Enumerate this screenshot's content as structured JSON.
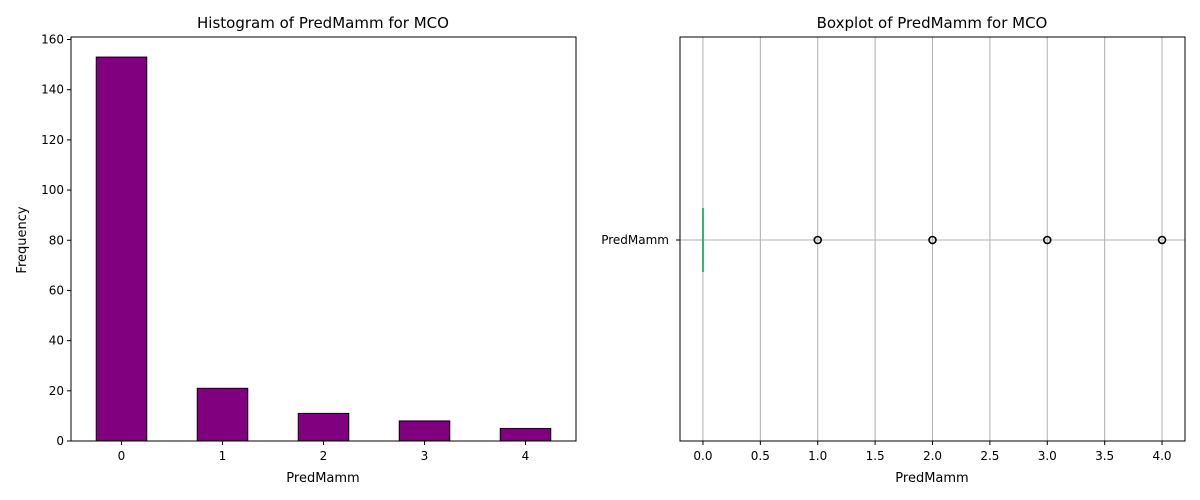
{
  "chart_data": [
    {
      "type": "bar",
      "title": "Histogram of PredMamm for MCO",
      "xlabel": "PredMamm",
      "ylabel": "Frequency",
      "categories": [
        "0",
        "1",
        "2",
        "3",
        "4"
      ],
      "values": [
        153,
        21,
        11,
        8,
        5
      ],
      "ylim": [
        0,
        161
      ],
      "yticks": [
        0,
        20,
        40,
        60,
        80,
        100,
        120,
        140,
        160
      ],
      "bar_color": "#800080",
      "edge_color": "#000000",
      "grid": false
    },
    {
      "type": "box",
      "title": "Boxplot of PredMamm for MCO",
      "xlabel": "PredMamm",
      "category": "PredMamm",
      "xlim": [
        -0.2,
        4.2
      ],
      "xticks": [
        "0.0",
        "0.5",
        "1.0",
        "1.5",
        "2.0",
        "2.5",
        "3.0",
        "3.5",
        "4.0"
      ],
      "box": {
        "q1": 0,
        "median": 0,
        "q3": 0,
        "whisker_low": 0,
        "whisker_high": 0
      },
      "outliers": [
        1,
        2,
        3,
        4
      ],
      "median_color": "#3cb371",
      "grid": true
    }
  ]
}
